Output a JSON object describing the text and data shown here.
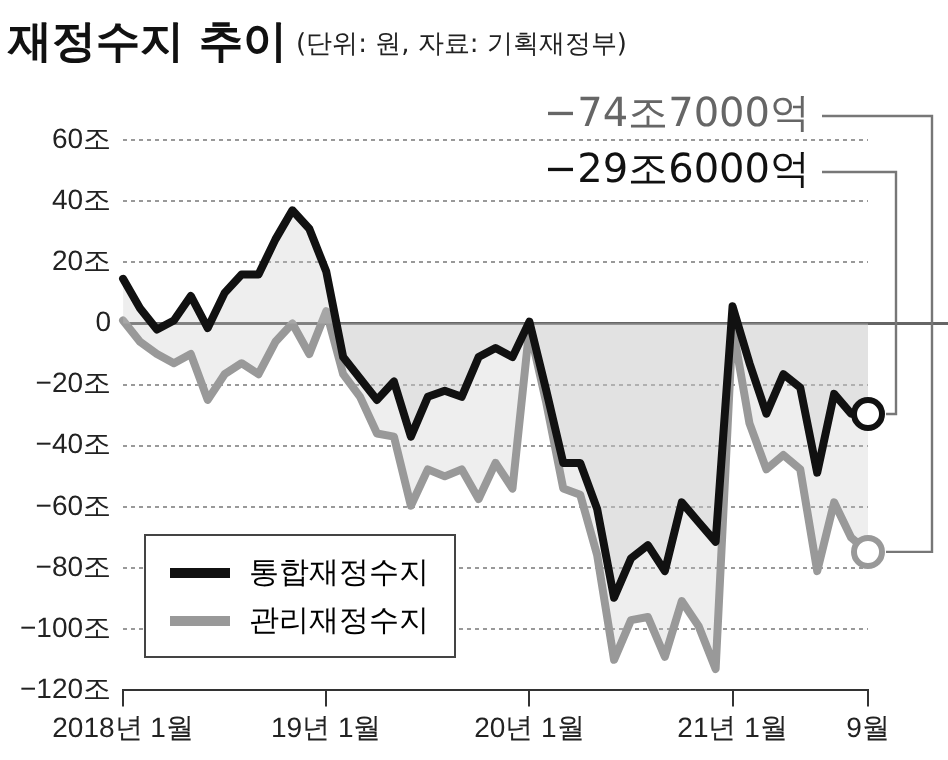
{
  "chart_data": {
    "type": "area",
    "title": "재정수지 추이",
    "subtitle": "(단위: 원, 자료: 기획재정부)",
    "categories": [
      "2018년 1월",
      null,
      null,
      null,
      null,
      null,
      null,
      null,
      null,
      null,
      null,
      null,
      "19년 1월",
      null,
      null,
      null,
      null,
      null,
      null,
      null,
      null,
      null,
      null,
      null,
      "20년 1월",
      null,
      null,
      null,
      null,
      null,
      null,
      null,
      null,
      null,
      null,
      null,
      "21년 1월",
      null,
      null,
      null,
      null,
      null,
      null,
      null,
      "9월"
    ],
    "series": [
      {
        "name": "통합재정수지",
        "color": "#111111",
        "values": [
          14.6,
          5,
          -2,
          1,
          9,
          -1.5,
          10,
          16,
          16,
          27.5,
          37,
          31,
          17,
          -11,
          -18,
          -25,
          -19,
          -37,
          -24,
          -22,
          -24,
          -11,
          -8,
          -11,
          0.6,
          -22,
          -45.6,
          -45.6,
          -60.6,
          -89.7,
          -76.8,
          -72.5,
          -81,
          -58.5,
          -65,
          -71.4,
          5.6,
          -13,
          -29.5,
          -16.6,
          -21,
          -48.8,
          -23,
          -29.5,
          -29.6
        ]
      },
      {
        "name": "관리재정수지",
        "color": "#999999",
        "values": [
          1,
          -6,
          -10,
          -13,
          -10,
          -25,
          -16.6,
          -13,
          -16.6,
          -6,
          0,
          -10,
          4,
          -16.6,
          -24,
          -36,
          -37,
          -59.6,
          -47.7,
          -50,
          -47.7,
          -57.4,
          -45.6,
          -54,
          -1.5,
          -26,
          -54,
          -56,
          -75.7,
          -110,
          -97,
          -96,
          -109,
          -90.8,
          -99,
          -113,
          -1,
          -32.7,
          -47.7,
          -43,
          -47.7,
          -81,
          -58.5,
          -70,
          -74.7
        ]
      }
    ],
    "ylim": [
      -120,
      60
    ],
    "yticks": [
      {
        "value": 60,
        "label": "60조"
      },
      {
        "value": 40,
        "label": "40조"
      },
      {
        "value": 20,
        "label": "20조"
      },
      0,
      {
        "value": -20,
        "label": "−20조"
      },
      {
        "value": -40,
        "label": "−40조"
      },
      {
        "value": -60,
        "label": "−60조"
      },
      {
        "value": -80,
        "label": "−80조"
      },
      {
        "value": -100,
        "label": "−100조"
      },
      {
        "value": -120,
        "label": "−120조"
      }
    ],
    "grid": "y",
    "legend": "bottom left",
    "ref_lines": [
      {
        "axis": "y",
        "value": 0,
        "color": "#666666",
        "line_style": "solid"
      }
    ],
    "annotations": [
      {
        "text": "−74조7000억",
        "x": "9월",
        "y": -74.7
      },
      {
        "text": "−29조6000억",
        "x": "9월",
        "y": -29.6
      }
    ]
  }
}
